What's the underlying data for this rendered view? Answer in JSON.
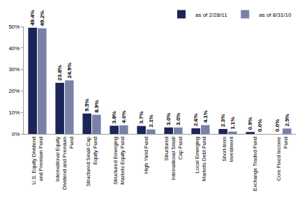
{
  "chart_data": {
    "type": "bar",
    "categories": [
      "U.S. Equity Dividend and Premium Fund",
      "International Equity Dividend and Premium Fund",
      "Structured Small Cap Equity Fund",
      "Structured Emerging Markets Equity Fund",
      "High Yield Fund",
      "Structured International Small Cap Fund",
      "Local Emerging Markets Debt Fund",
      "Short-term Investment",
      "Exchange Traded Fund",
      "Core Fixed Income Fund"
    ],
    "series": [
      {
        "name": "as of 2/28/11",
        "color": "#1c2557",
        "values": [
          49.4,
          23.8,
          9.5,
          3.8,
          3.7,
          3.0,
          2.6,
          2.3,
          0.9,
          0.0
        ],
        "value_labels": [
          "49.4%",
          "23.8%",
          "9.5%",
          "3.8%",
          "3.7%",
          "3.0%",
          "2.6%",
          "2.3%",
          "0.9%",
          "0.0%"
        ]
      },
      {
        "name": "as of 8/31/10",
        "color": "#7882a9",
        "values": [
          49.2,
          24.9,
          8.9,
          4.0,
          2.1,
          3.0,
          4.1,
          1.1,
          0.0,
          2.5
        ],
        "value_labels": [
          "49.2%",
          "24.9%",
          "8.9%",
          "4.0%",
          "2.1%",
          "3.0%",
          "4.1%",
          "1.1%",
          "0.0%",
          "2.5%"
        ]
      }
    ],
    "ylim": [
      0,
      50
    ],
    "yticks": [
      {
        "value": 0,
        "label": "0%"
      },
      {
        "value": 10,
        "label": "10%"
      },
      {
        "value": 20,
        "label": "20%"
      },
      {
        "value": 30,
        "label": "30%"
      },
      {
        "value": 40,
        "label": "40%"
      },
      {
        "value": 50,
        "label": "50%"
      }
    ],
    "grid": false,
    "legend": "top-right",
    "data_labels": true
  }
}
